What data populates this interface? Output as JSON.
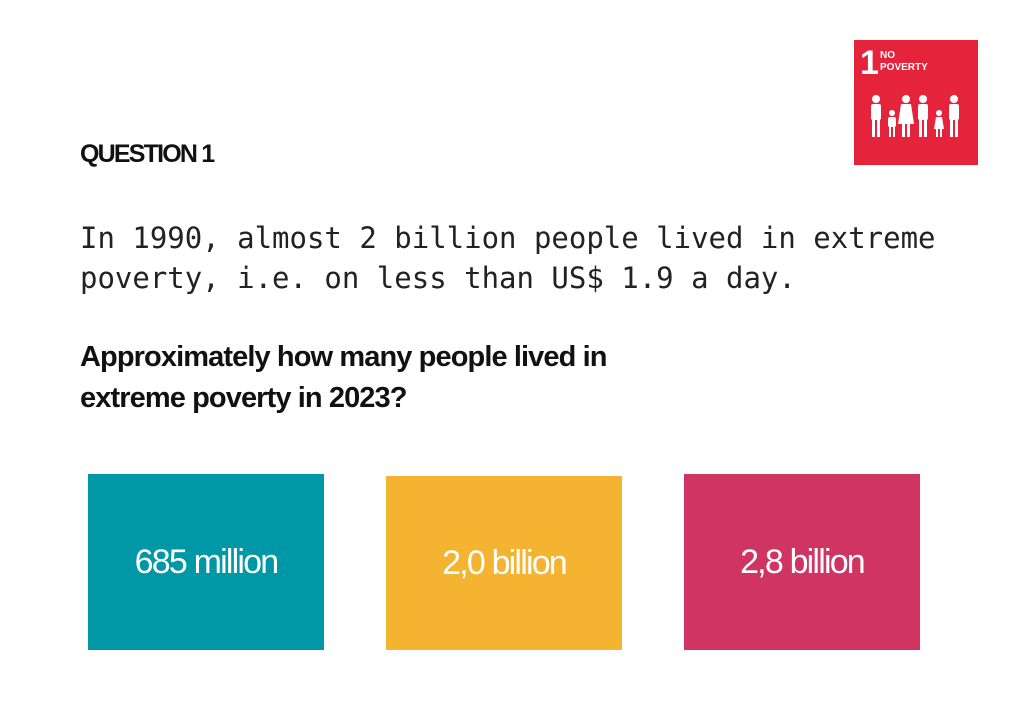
{
  "logo": {
    "number": "1",
    "label_lines": [
      "NO",
      "POVERTY"
    ]
  },
  "heading": "QUESTION 1",
  "intro_lines": [
    "In 1990, almost 2 billion people lived in extreme",
    "poverty, i.e. on less than US$ 1.9 a day."
  ],
  "question_lines": [
    "Approximately how many people lived in",
    "extreme poverty in 2023?"
  ],
  "answers": [
    "685 million",
    "2,0 billion",
    "2,8 billion"
  ]
}
